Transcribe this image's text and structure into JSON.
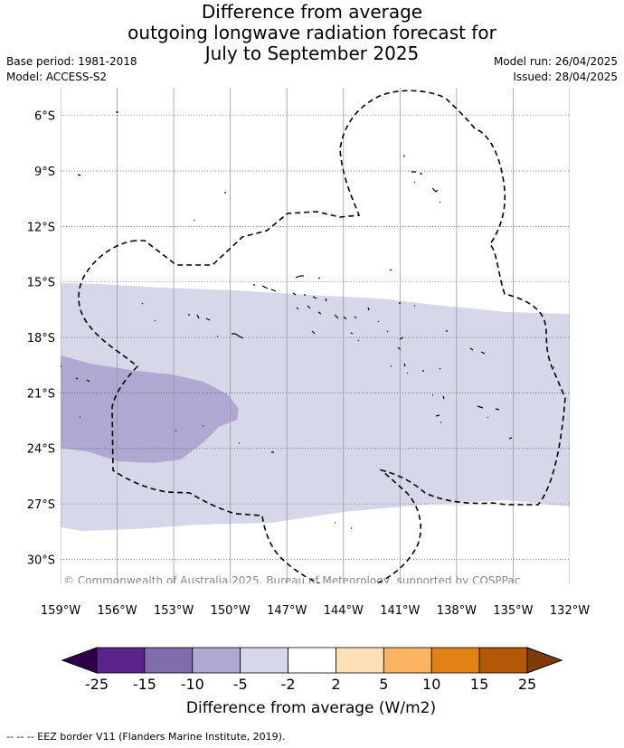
{
  "title": {
    "line1": "Difference from average",
    "line2": "outgoing longwave radiation forecast for",
    "line3": "July to September 2025"
  },
  "meta": {
    "base_period": "Base period: 1981-2018",
    "model": "Model: ACCESS-S2",
    "model_run": "Model run: 26/04/2025",
    "issued": "Issued: 28/04/2025"
  },
  "map": {
    "lat_labels": [
      "6°S",
      "9°S",
      "12°S",
      "15°S",
      "18°S",
      "21°S",
      "24°S",
      "27°S",
      "30°S"
    ],
    "lon_labels": [
      "159°W",
      "156°W",
      "153°W",
      "150°W",
      "147°W",
      "144°W",
      "141°W",
      "138°W",
      "135°W",
      "132°W"
    ],
    "lat_range": [
      -31.3,
      -4.5
    ],
    "lon_range": [
      -159,
      -132
    ],
    "copyright": "© Commonwealth of Australia 2025, Bureau of Meteorology, supported by COSPPac"
  },
  "colorbar": {
    "ticks": [
      "-25",
      "-15",
      "-10",
      "-5",
      "-2",
      "2",
      "5",
      "10",
      "15",
      "25"
    ],
    "colors": [
      "#59238a",
      "#7f6eab",
      "#b0a8d1",
      "#d7d7ea",
      "#ffffff",
      "#fde0b6",
      "#fdb462",
      "#e08214",
      "#b35806"
    ],
    "under_color": "#2d004b",
    "over_color": "#7f3b08",
    "label": "Difference from average (W/m2)"
  },
  "legend": {
    "eez": "--  --  -- EEZ border V11 (Flanders Marine Institute, 2019)."
  }
}
